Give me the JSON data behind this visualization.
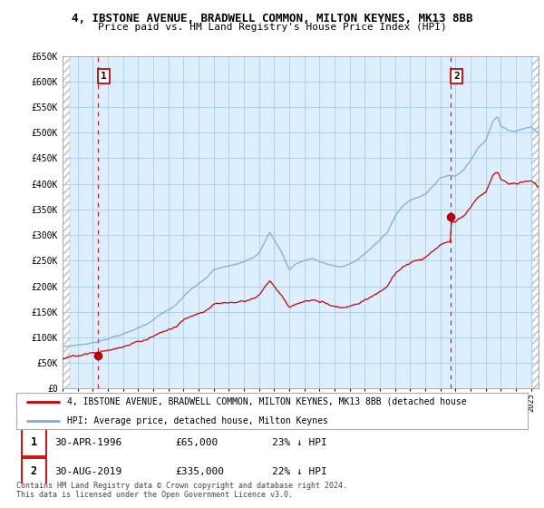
{
  "title": "4, IBSTONE AVENUE, BRADWELL COMMON, MILTON KEYNES, MK13 8BB",
  "subtitle": "Price paid vs. HM Land Registry's House Price Index (HPI)",
  "ylim": [
    0,
    650000
  ],
  "yticks": [
    0,
    50000,
    100000,
    150000,
    200000,
    250000,
    300000,
    350000,
    400000,
    450000,
    500000,
    550000,
    600000,
    650000
  ],
  "sale1_date": 1996.33,
  "sale1_price": 65000,
  "sale2_date": 2019.67,
  "sale2_price": 335000,
  "legend_line1": "4, IBSTONE AVENUE, BRADWELL COMMON, MILTON KEYNES, MK13 8BB (detached house",
  "legend_line2": "HPI: Average price, detached house, Milton Keynes",
  "footnote1": "Contains HM Land Registry data © Crown copyright and database right 2024.",
  "footnote2": "This data is licensed under the Open Government Licence v3.0.",
  "hpi_color": "#7ab0d4",
  "price_color": "#cc0000",
  "dashed_color": "#cc0000",
  "bg_color": "#ddeeff",
  "grid_color": "#aaccee"
}
